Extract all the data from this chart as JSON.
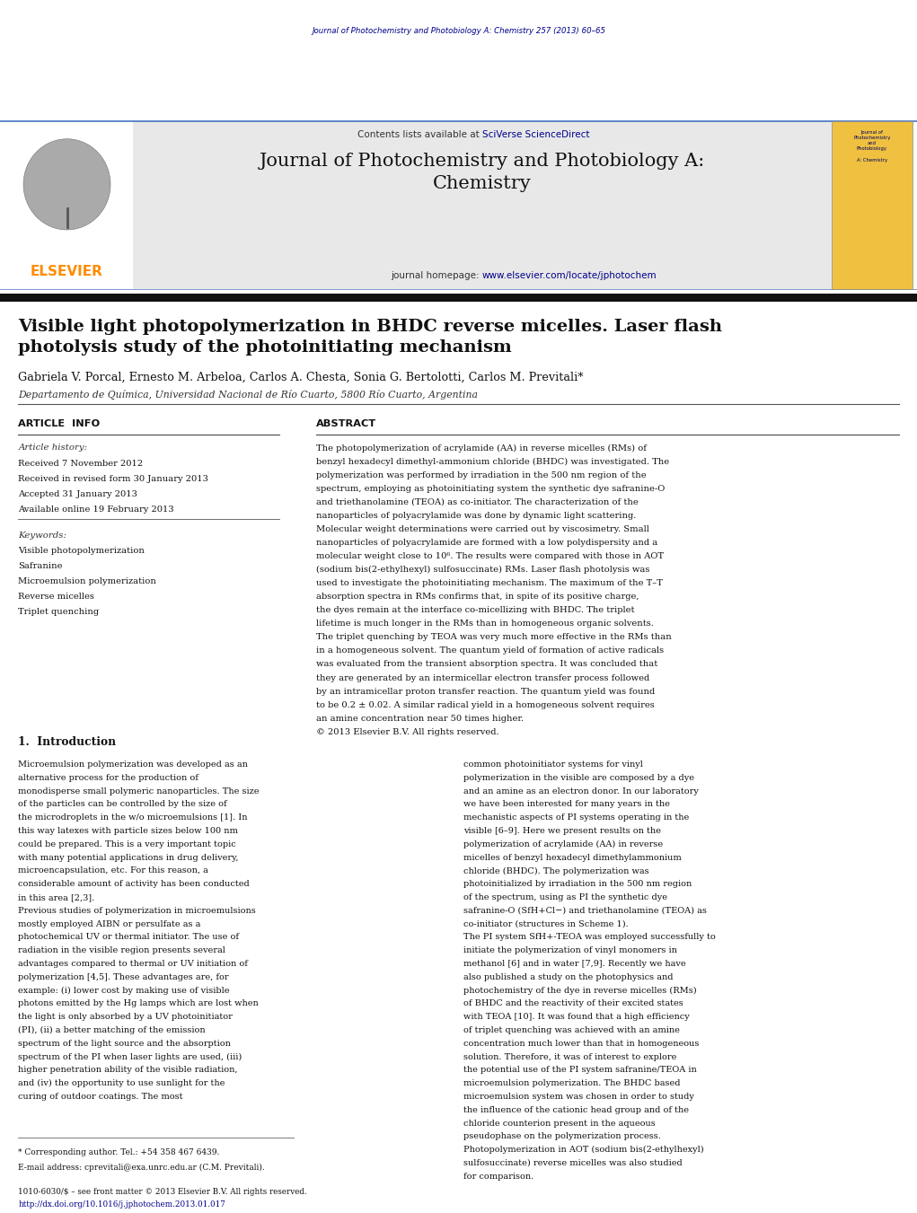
{
  "background_color": "#ffffff",
  "top_journal_ref": "Journal of Photochemistry and Photobiology A: Chemistry 257 (2013) 60–65",
  "header_bg_color": "#e8e8e8",
  "header_journal_title": "Journal of Photochemistry and Photobiology A:\nChemistry",
  "header_contents_text": "Contents lists available at ",
  "header_sciverse": "SciVerse ScienceDirect",
  "header_homepage_pre": "journal homepage: ",
  "header_homepage_link": "www.elsevier.com/locate/jphotochem",
  "elsevier_color": "#ff8c00",
  "elsevier_text": "ELSEVIER",
  "article_title": "Visible light photopolymerization in BHDC reverse micelles. Laser flash\nphotolysis study of the photoinitiating mechanism",
  "authors": "Gabriela V. Porcal, Ernesto M. Arbeloa, Carlos A. Chesta, Sonia G. Bertolotti, Carlos M. Previtali*",
  "affiliation": "Departamento de Química, Universidad Nacional de Río Cuarto, 5800 Río Cuarto, Argentina",
  "article_info_label": "ARTICLE  INFO",
  "abstract_label": "ABSTRACT",
  "article_history_label": "Article history:",
  "received": "Received 7 November 2012",
  "revised": "Received in revised form 30 January 2013",
  "accepted": "Accepted 31 January 2013",
  "available": "Available online 19 February 2013",
  "keywords_label": "Keywords:",
  "keywords": [
    "Visible photopolymerization",
    "Safranine",
    "Microemulsion polymerization",
    "Reverse micelles",
    "Triplet quenching"
  ],
  "abstract_text": "The photopolymerization of acrylamide (AA) in reverse micelles (RMs) of benzyl hexadecyl dimethyl-ammonium chloride (BHDC) was investigated. The polymerization was performed by irradiation in the 500 nm region of the spectrum, employing as photoinitiating system the synthetic dye safranine-O and triethanolamine (TEOA) as co-initiator. The characterization of the nanoparticles of polyacrylamide was done by dynamic light scattering. Molecular weight determinations were carried out by viscosimetry. Small nanoparticles of polyacrylamide are formed with a low polydispersity and a molecular weight close to 10⁶. The results were compared with those in AOT (sodium bis(2-ethylhexyl) sulfosuccinate) RMs. Laser flash photolysis was used to investigate the photoinitiating mechanism. The maximum of the T–T absorption spectra in RMs confirms that, in spite of its positive charge, the dyes remain at the interface co-micellizing with BHDC. The triplet lifetime is much longer in the RMs than in homogeneous organic solvents. The triplet quenching by TEOA was very much more effective in the RMs than in a homogeneous solvent. The quantum yield of formation of active radicals was evaluated from the transient absorption spectra. It was concluded that they are generated by an intermicellar electron transfer process followed by an intramicellar proton transfer reaction. The quantum yield was found to be 0.2 ± 0.02. A similar radical yield in a homogeneous solvent requires an amine concentration near 50 times higher.\n© 2013 Elsevier B.V. All rights reserved.",
  "intro_heading": "1.  Introduction",
  "intro_left_col": "   Microemulsion polymerization was developed as an alternative process for the production of monodisperse small polymeric nanoparticles. The size of the particles can be controlled by the size of the microdroplets in the w/o microemulsions [1]. In this way latexes with particle sizes below 100 nm could be prepared. This is a very important topic with many potential applications in drug delivery, microencapsulation, etc. For this reason, a considerable amount of activity has been conducted in this area [2,3].\n   Previous studies of polymerization in microemulsions mostly employed AIBN or persulfate as a photochemical UV or thermal initiator. The use of radiation in the visible region presents several advantages compared to thermal or UV initiation of polymerization [4,5]. These advantages are, for example: (i) lower cost by making use of visible photons emitted by the Hg lamps which are lost when the light is only absorbed by a UV photoinitiator (PI), (ii) a better matching of the emission spectrum of the light source and the absorption spectrum of the PI when laser lights are used, (iii) higher penetration ability of the visible radiation, and (iv) the opportunity to use sunlight for the curing of outdoor coatings. The most",
  "intro_right_col": "common photoinitiator systems for vinyl polymerization in the visible are composed by a dye and an amine as an electron donor. In our laboratory we have been interested for many years in the mechanistic aspects of PI systems operating in the visible [6–9]. Here we present results on the polymerization of acrylamide (AA) in reverse micelles of benzyl hexadecyl dimethylammonium chloride (BHDC). The polymerization was photoinitialized by irradiation in the 500 nm region of the spectrum, using as PI the synthetic dye safranine-O (SfH+Cl−) and triethanolamine (TEOA) as co-initiator (structures in Scheme 1).\n   The PI system SfH+-TEOA was employed successfully to initiate the polymerization of vinyl monomers in methanol [6] and in water [7,9]. Recently we have also published a study on the photophysics and photochemistry of the dye in reverse micelles (RMs) of BHDC and the reactivity of their excited states with TEOA [10]. It was found that a high efficiency of triplet quenching was achieved with an amine concentration much lower than that in homogeneous solution. Therefore, it was of interest to explore the potential use of the PI system safranine/TEOA in microemulsion polymerization. The BHDC based microemulsion system was chosen in order to study the influence of the cationic head group and of the chloride counterion present in the aqueous pseudophase on the polymerization process. Photopolymerization in AOT (sodium bis(2-ethylhexyl) sulfosuccinate) reverse micelles was also studied for comparison.",
  "footnote_corresponding": "* Corresponding author. Tel.: +54 358 467 6439.",
  "footnote_email": "E-mail address: cprevitali@exa.unrc.edu.ar (C.M. Previtali).",
  "footer_issn": "1010-6030/$ – see front matter © 2013 Elsevier B.V. All rights reserved.",
  "footer_doi": "http://dx.doi.org/10.1016/j.jphotochem.2013.01.017",
  "link_color": "#00008b",
  "dark_navy": "#00008b",
  "separator_color": "#000000"
}
